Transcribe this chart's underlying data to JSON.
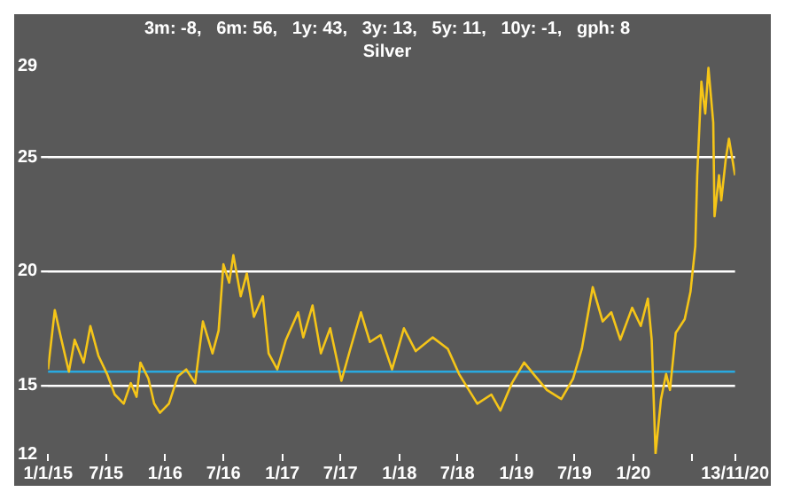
{
  "chart_data": {
    "type": "line",
    "title": "3m: -8,   6m: 56,   1y: 43,   3y: 13,   5y: 11,   10y: -1,   gph: 8",
    "subtitle": "Silver",
    "x": [
      "2015-01-01",
      "2015-01-22",
      "2015-02-10",
      "2015-03-07",
      "2015-03-25",
      "2015-04-22",
      "2015-05-13",
      "2015-06-07",
      "2015-07-04",
      "2015-07-28",
      "2015-08-25",
      "2015-09-16",
      "2015-10-04",
      "2015-10-16",
      "2015-11-10",
      "2015-11-28",
      "2015-12-16",
      "2016-01-13",
      "2016-02-10",
      "2016-03-07",
      "2016-04-04",
      "2016-04-28",
      "2016-05-28",
      "2016-06-16",
      "2016-07-01",
      "2016-07-19",
      "2016-08-01",
      "2016-08-24",
      "2016-09-12",
      "2016-10-04",
      "2016-11-01",
      "2016-11-19",
      "2016-12-16",
      "2017-01-12",
      "2017-02-19",
      "2017-03-07",
      "2017-04-05",
      "2017-05-01",
      "2017-05-30",
      "2017-07-04",
      "2017-08-01",
      "2017-09-03",
      "2017-10-01",
      "2017-11-03",
      "2017-12-09",
      "2018-01-15",
      "2018-02-21",
      "2018-04-15",
      "2018-06-01",
      "2018-07-06",
      "2018-09-01",
      "2018-10-15",
      "2018-11-12",
      "2018-12-18",
      "2019-01-25",
      "2019-03-01",
      "2019-04-06",
      "2019-05-21",
      "2019-06-27",
      "2019-07-24",
      "2019-08-27",
      "2019-09-27",
      "2019-10-24",
      "2019-11-21",
      "2019-12-28",
      "2020-01-24",
      "2020-02-15",
      "2020-02-27",
      "2020-03-10",
      "2020-03-27",
      "2020-04-12",
      "2020-04-24",
      "2020-05-12",
      "2020-06-09",
      "2020-06-27",
      "2020-07-12",
      "2020-07-18",
      "2020-07-31",
      "2020-08-12",
      "2020-08-22",
      "2020-09-06",
      "2020-09-10",
      "2020-09-24",
      "2020-10-01",
      "2020-10-15",
      "2020-10-25",
      "2020-11-13"
    ],
    "series": [
      {
        "color": "#f5c518",
        "values": [
          15.7,
          18.3,
          17.1,
          15.6,
          17.0,
          16.0,
          17.6,
          16.3,
          15.5,
          14.6,
          14.2,
          15.1,
          14.5,
          16.0,
          15.3,
          14.2,
          13.8,
          14.2,
          15.4,
          15.7,
          15.1,
          17.8,
          16.4,
          17.4,
          20.3,
          19.5,
          20.7,
          18.9,
          19.9,
          18.0,
          18.9,
          16.4,
          15.7,
          17.0,
          18.2,
          17.1,
          18.5,
          16.4,
          17.5,
          15.2,
          16.6,
          18.2,
          16.9,
          17.2,
          15.7,
          17.5,
          16.5,
          17.1,
          16.6,
          15.5,
          14.2,
          14.6,
          13.9,
          15.1,
          16.0,
          15.4,
          14.8,
          14.4,
          15.3,
          16.6,
          19.3,
          17.8,
          18.2,
          17.0,
          18.4,
          17.6,
          18.8,
          17.0,
          12.0,
          14.4,
          15.5,
          14.8,
          17.3,
          17.9,
          19.1,
          21.1,
          24.2,
          28.3,
          26.9,
          28.9,
          26.5,
          22.4,
          24.2,
          23.1,
          24.9,
          25.8,
          24.2
        ]
      }
    ],
    "xlim": [
      "2015-01-01",
      "2020-11-13"
    ],
    "xticks": [
      {
        "value": "2015-01-01",
        "label": "1/1/15"
      },
      {
        "value": "2015-07-01",
        "label": "7/15"
      },
      {
        "value": "2016-01-01",
        "label": "1/16"
      },
      {
        "value": "2016-07-01",
        "label": "7/16"
      },
      {
        "value": "2017-01-01",
        "label": "1/17"
      },
      {
        "value": "2017-07-01",
        "label": "7/17"
      },
      {
        "value": "2018-01-01",
        "label": "1/18"
      },
      {
        "value": "2018-07-01",
        "label": "7/18"
      },
      {
        "value": "2019-01-01",
        "label": "1/19"
      },
      {
        "value": "2019-07-01",
        "label": "7/19"
      },
      {
        "value": "2020-01-01",
        "label": "1/20"
      },
      {
        "value": "2020-07-01",
        "label": null
      },
      {
        "value": "2020-11-13",
        "label": "13/11/20"
      }
    ],
    "ylim": [
      12,
      29
    ],
    "yticks": [
      12,
      15,
      20,
      25,
      29
    ],
    "grid": "y",
    "ref_lines": [
      {
        "axis": "y",
        "value": 15.6,
        "color": "#29a9e0"
      }
    ]
  }
}
